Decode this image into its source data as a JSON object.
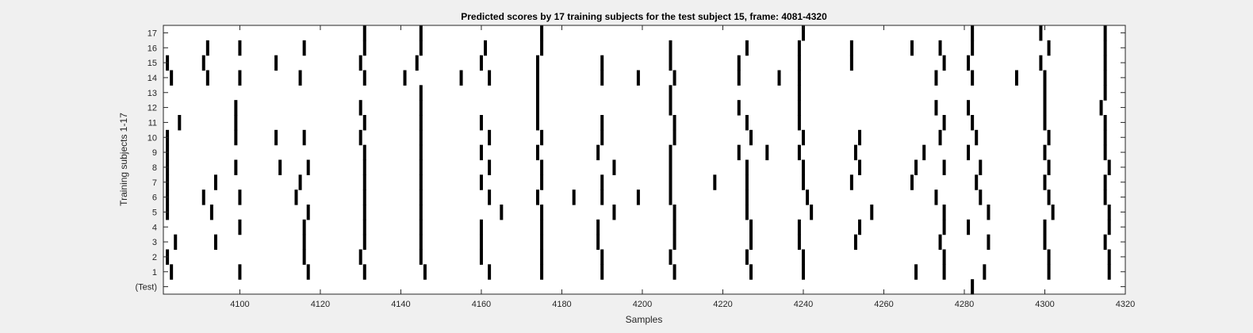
{
  "chart_data": {
    "type": "scatter",
    "title": "Predicted scores by 17 training subjects for the test subject 15, frame: 4081-4320",
    "xlabel": "Samples",
    "ylabel": "Training subjects 1-17",
    "xlim": [
      4081,
      4320
    ],
    "xticks": [
      4100,
      4120,
      4140,
      4160,
      4180,
      4200,
      4220,
      4240,
      4260,
      4280,
      4300,
      4320
    ],
    "ytick_labels": [
      "(Test)",
      "1",
      "2",
      "3",
      "4",
      "5",
      "6",
      "7",
      "8",
      "9",
      "10",
      "11",
      "12",
      "13",
      "14",
      "15",
      "16",
      "17"
    ],
    "grid": false,
    "colors": {
      "mark": "#000000",
      "axes_bg": "#ffffff",
      "figure_bg": "#f0f0f0"
    },
    "series": [
      {
        "row": "(Test)",
        "x": [
          4282
        ]
      },
      {
        "row": "1",
        "x": [
          4083,
          4100,
          4117,
          4131,
          4146,
          4162,
          4175,
          4190,
          4208,
          4227,
          4240,
          4268,
          4275,
          4285,
          4301,
          4316
        ]
      },
      {
        "row": "2",
        "x": [
          4082,
          4116,
          4130,
          4145,
          4160,
          4175,
          4190,
          4207,
          4226,
          4240,
          4275,
          4301,
          4316
        ]
      },
      {
        "row": "3",
        "x": [
          4084,
          4094,
          4116,
          4131,
          4145,
          4160,
          4175,
          4189,
          4208,
          4227,
          4239,
          4253,
          4274,
          4286,
          4300,
          4315
        ]
      },
      {
        "row": "4",
        "x": [
          4100,
          4116,
          4131,
          4145,
          4160,
          4175,
          4189,
          4208,
          4227,
          4239,
          4254,
          4275,
          4281,
          4300,
          4316
        ]
      },
      {
        "row": "5",
        "x": [
          4082,
          4093,
          4117,
          4131,
          4145,
          4165,
          4175,
          4193,
          4208,
          4226,
          4242,
          4257,
          4275,
          4286,
          4302,
          4316
        ]
      },
      {
        "row": "6",
        "x": [
          4082,
          4091,
          4100,
          4114,
          4131,
          4145,
          4162,
          4174,
          4183,
          4190,
          4199,
          4207,
          4226,
          4241,
          4273,
          4284,
          4301,
          4315
        ]
      },
      {
        "row": "7",
        "x": [
          4082,
          4094,
          4115,
          4131,
          4145,
          4160,
          4175,
          4190,
          4207,
          4218,
          4226,
          4240,
          4252,
          4267,
          4283,
          4300,
          4315
        ]
      },
      {
        "row": "8",
        "x": [
          4082,
          4099,
          4110,
          4117,
          4131,
          4145,
          4162,
          4175,
          4193,
          4207,
          4226,
          4240,
          4254,
          4268,
          4275,
          4284,
          4301,
          4316
        ]
      },
      {
        "row": "9",
        "x": [
          4082,
          4131,
          4145,
          4160,
          4174,
          4189,
          4207,
          4224,
          4231,
          4239,
          4253,
          4270,
          4281,
          4300,
          4315
        ]
      },
      {
        "row": "10",
        "x": [
          4082,
          4099,
          4109,
          4116,
          4130,
          4145,
          4162,
          4175,
          4190,
          4208,
          4227,
          4240,
          4254,
          4274,
          4283,
          4301,
          4315
        ]
      },
      {
        "row": "11",
        "x": [
          4085,
          4099,
          4131,
          4145,
          4160,
          4174,
          4190,
          4208,
          4226,
          4239,
          4275,
          4282,
          4300,
          4315
        ]
      },
      {
        "row": "12",
        "x": [
          4099,
          4130,
          4145,
          4174,
          4207,
          4224,
          4239,
          4273,
          4281,
          4300,
          4314
        ]
      },
      {
        "row": "13",
        "x": [
          4145,
          4174,
          4207,
          4239,
          4300,
          4315
        ]
      },
      {
        "row": "14",
        "x": [
          4083,
          4092,
          4100,
          4115,
          4131,
          4141,
          4155,
          4162,
          4174,
          4190,
          4199,
          4208,
          4224,
          4234,
          4239,
          4273,
          4282,
          4293,
          4300,
          4315
        ]
      },
      {
        "row": "15",
        "x": [
          4082,
          4091,
          4109,
          4130,
          4144,
          4160,
          4174,
          4190,
          4207,
          4224,
          4239,
          4252,
          4275,
          4281,
          4299,
          4315
        ]
      },
      {
        "row": "16",
        "x": [
          4092,
          4100,
          4116,
          4131,
          4145,
          4161,
          4175,
          4207,
          4226,
          4239,
          4252,
          4267,
          4274,
          4282,
          4301,
          4315
        ]
      },
      {
        "row": "17",
        "x": [
          4131,
          4145,
          4175,
          4240,
          4282,
          4299,
          4315
        ]
      }
    ]
  }
}
